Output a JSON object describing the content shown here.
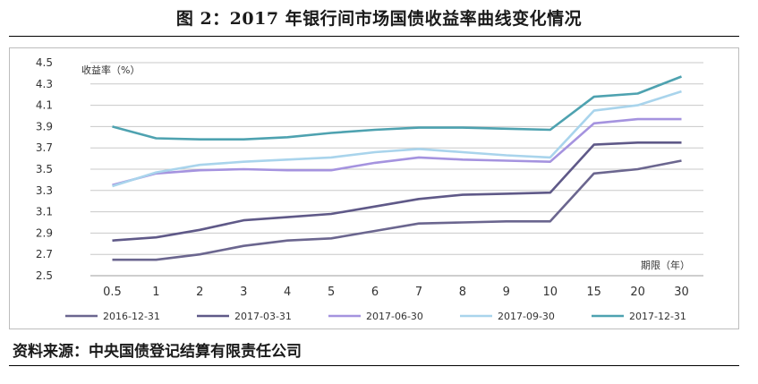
{
  "title": "图 2：2017 年银行间市场国债收益率曲线变化情况",
  "source": "资料来源：中央国债登记结算有限责任公司",
  "colors": {
    "grid": "#c8c8c8",
    "axis": "#9e9e9e",
    "text": "#333333",
    "s2016_12_31": "#6b668f",
    "s2017_03_31": "#5f5988",
    "s2017_06_30": "#a593df",
    "s2017_09_30": "#a9d4ec",
    "s2017_12_31": "#4ea2b0"
  },
  "chart_data": {
    "type": "line",
    "ylabel": "收益率（%）",
    "xlabel": "期限（年）",
    "ylim": [
      2.5,
      4.5
    ],
    "yticks": [
      "2.5",
      "2.7",
      "2.9",
      "3.1",
      "3.3",
      "3.5",
      "3.7",
      "3.9",
      "4.1",
      "4.3",
      "4.5"
    ],
    "grid": true,
    "legend_position": "bottom",
    "categories": [
      "0.5",
      "1",
      "2",
      "3",
      "4",
      "5",
      "6",
      "7",
      "8",
      "9",
      "10",
      "15",
      "20",
      "30"
    ],
    "series": [
      {
        "name": "2016-12-31",
        "color_key": "s2016_12_31",
        "values": [
          2.65,
          2.65,
          2.7,
          2.78,
          2.83,
          2.85,
          2.92,
          2.99,
          3.0,
          3.01,
          3.01,
          3.46,
          3.5,
          3.58
        ]
      },
      {
        "name": "2017-03-31",
        "color_key": "s2017_03_31",
        "values": [
          2.83,
          2.86,
          2.93,
          3.02,
          3.05,
          3.08,
          3.15,
          3.22,
          3.26,
          3.27,
          3.28,
          3.73,
          3.75,
          3.75
        ]
      },
      {
        "name": "2017-06-30",
        "color_key": "s2017_06_30",
        "values": [
          3.35,
          3.46,
          3.49,
          3.5,
          3.49,
          3.49,
          3.56,
          3.61,
          3.59,
          3.58,
          3.57,
          3.93,
          3.97,
          3.97
        ]
      },
      {
        "name": "2017-09-30",
        "color_key": "s2017_09_30",
        "values": [
          3.34,
          3.47,
          3.54,
          3.57,
          3.59,
          3.61,
          3.66,
          3.69,
          3.66,
          3.63,
          3.61,
          4.05,
          4.1,
          4.23
        ]
      },
      {
        "name": "2017-12-31",
        "color_key": "s2017_12_31",
        "values": [
          3.9,
          3.79,
          3.78,
          3.78,
          3.8,
          3.84,
          3.87,
          3.89,
          3.89,
          3.88,
          3.87,
          4.18,
          4.21,
          4.37
        ]
      }
    ]
  }
}
